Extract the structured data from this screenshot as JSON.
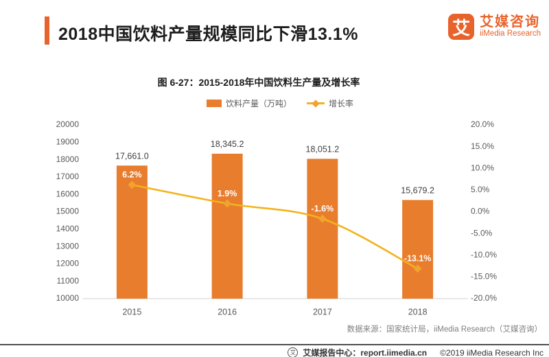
{
  "header": {
    "title": "2018中国饮料产量规模同比下滑13.1%",
    "logo": {
      "glyph": "艾",
      "name_cn": "艾媒咨询",
      "name_en": "iiMedia Research"
    }
  },
  "chart": {
    "title": "图 6-27：2015-2018年中国饮料生产量及增长率",
    "legend_bar_label": "饮料产量（万吨）",
    "legend_line_label": "增长率"
  },
  "chart_data": {
    "type": "bar",
    "subtype": "bar + smooth line combo, dual Y axes",
    "title": "图 6-27：2015-2018年中国饮料生产量及增长率",
    "categories": [
      "2015",
      "2016",
      "2017",
      "2018"
    ],
    "series": [
      {
        "name": "饮料产量（万吨）",
        "type": "bar",
        "axis": "left",
        "color": "#E87D2E",
        "values": [
          17661.0,
          18345.2,
          18051.2,
          15679.2
        ],
        "data_labels": [
          "17,661.0",
          "18,345.2",
          "18,051.2",
          "15,679.2"
        ]
      },
      {
        "name": "增长率",
        "type": "line",
        "axis": "right",
        "color": "#F2B31C",
        "marker_color": "#F0A32E",
        "values": [
          6.2,
          1.9,
          -1.6,
          -13.1
        ],
        "data_labels": [
          "6.2%",
          "1.9%",
          "-1.6%",
          "-13.1%"
        ]
      }
    ],
    "left_axis": {
      "min": 10000,
      "max": 20000,
      "tick_step": 1000,
      "tick_labels": [
        "10000",
        "11000",
        "12000",
        "13000",
        "14000",
        "15000",
        "16000",
        "17000",
        "18000",
        "19000",
        "20000"
      ]
    },
    "right_axis": {
      "min": -20,
      "max": 20,
      "tick_step": 5,
      "tick_labels": [
        "-20.0%",
        "-15.0%",
        "-10.0%",
        "-5.0%",
        "0.0%",
        "5.0%",
        "10.0%",
        "15.0%",
        "20.0%"
      ]
    },
    "grid": false,
    "legend_position": "top"
  },
  "source_note": "数据来源：国家统计局，iiMedia Research（艾媒咨询）",
  "footer": {
    "icon_glyph": "艾",
    "report_center": "艾媒报告中心：report.iimedia.cn",
    "copyright": "©2019  iiMedia Research  Inc"
  },
  "colors": {
    "accent_orange": "#E8632C",
    "bar_orange": "#E87D2E",
    "line_gold": "#F2B31C",
    "axis_text": "#595959",
    "value_label_text": "#404040",
    "percent_label_text": "#ffffff"
  }
}
